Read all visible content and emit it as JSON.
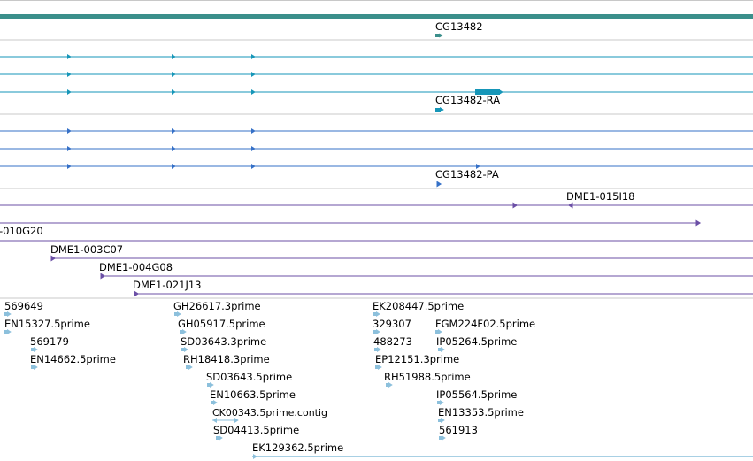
{
  "colors": {
    "gene": "#3b8f8b",
    "transcript_rna": "#1696b8",
    "transcript_protein": "#3570c7",
    "clone": "#6b4fa6",
    "est": "#8cc0dc",
    "separator": "#c8c8c8"
  },
  "tracks": {
    "gene_label": "CG13482",
    "rna_label": "CG13482-RA",
    "protein_label": "CG13482-PA",
    "clones": [
      "DME1-015I18",
      "-010G20",
      "DME1-003C07",
      "DME1-004G08",
      "DME1-021J13"
    ],
    "ests": [
      "569649",
      "EN15327.5prime",
      "569179",
      "EN14662.5prime",
      "GH26617.3prime",
      "GH05917.5prime",
      "SD03643.3prime",
      "RH18418.3prime",
      "SD03643.5prime",
      "EN10663.5prime",
      "CK00343.5prime.contig",
      "SD04413.5prime",
      "EK129362.5prime",
      "EK208447.5prime",
      "329307",
      "FGM224F02.5prime",
      "488273",
      "IP05264.5prime",
      "EP12151.3prime",
      "RH51988.5prime",
      "IP05564.5prime",
      "EN13353.5prime",
      "561913"
    ]
  }
}
